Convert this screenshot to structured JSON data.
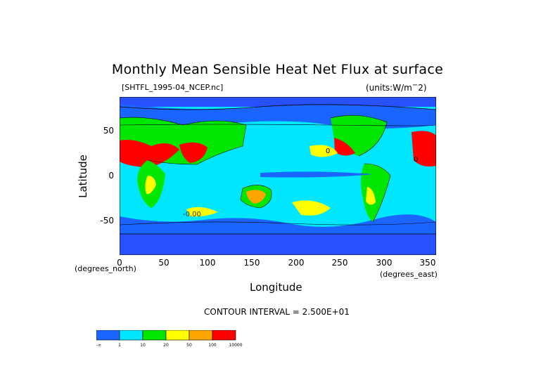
{
  "title": "Monthly Mean Sensible Heat Net Flux at surface",
  "file_label": "[SHTFL_1995-04_NCEP.nc]",
  "units_label": "(units:W/m^2)",
  "y_axis_label": "Latitude",
  "x_axis_label": "Longitude",
  "x_axis_unit_left": "(degrees_north)",
  "x_axis_unit_right": "(degrees_east)",
  "contour_interval": "CONTOUR INTERVAL = 2.500E+01",
  "y_ticks": [
    "50",
    "0",
    "-50"
  ],
  "x_ticks": [
    "0",
    "50",
    "100",
    "150",
    "200",
    "250",
    "300",
    "350"
  ],
  "colorbar": {
    "colors": [
      "#1a64ff",
      "#00e6ff",
      "#00e600",
      "#ffff00",
      "#ffa500",
      "#ff0000"
    ],
    "labels": [
      "-∞",
      "1",
      "10",
      "20",
      "50",
      "100",
      "10000"
    ]
  },
  "map_labels": {
    "contour_0_a": "0",
    "contour_0_b": "0",
    "contour_neg": "-0.00"
  },
  "colors": {
    "ocean_low": "#1a64ff",
    "ocean_mid": "#00e6ff",
    "land_green": "#00e600",
    "yellow": "#ffff00",
    "orange": "#ffa500",
    "red": "#ff0000",
    "polar": "#2850ff"
  }
}
